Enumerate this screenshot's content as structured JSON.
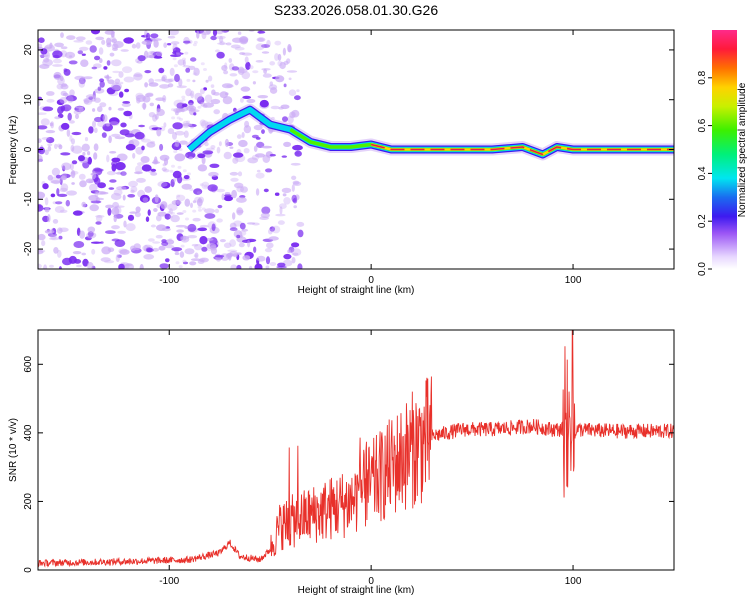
{
  "title": "S233.2026.058.01.30.G26",
  "colors": {
    "snr_line": "#e8302a",
    "spectral_weak": "#c9a8f5",
    "spectral_mid": "#7a2cf0",
    "spectral_strong": "#e0204a"
  },
  "chart_data": [
    {
      "type": "heatmap",
      "xlabel": "Height of straight line (km)",
      "ylabel": "Frequency (Hz)",
      "xlim": [
        -165,
        150
      ],
      "ylim": [
        -24,
        24
      ],
      "xticks": [
        -100,
        0,
        100
      ],
      "yticks": [
        -20,
        -10,
        0,
        10,
        20
      ],
      "grid": false,
      "colorbar": {
        "label": "Normalized spectral amplitude",
        "ticks": [
          0.0,
          0.2,
          0.4,
          0.6,
          0.8
        ],
        "range": [
          0,
          1
        ]
      },
      "ridge": {
        "description_points": [
          {
            "x": -90,
            "f": 0.0
          },
          {
            "x": -80,
            "f": 3.5
          },
          {
            "x": -70,
            "f": 6.0
          },
          {
            "x": -60,
            "f": 8.0
          },
          {
            "x": -50,
            "f": 5.0
          },
          {
            "x": -40,
            "f": 4.0
          },
          {
            "x": -30,
            "f": 1.5
          },
          {
            "x": -20,
            "f": 0.5
          },
          {
            "x": -10,
            "f": 0.5
          },
          {
            "x": 0,
            "f": 1.0
          },
          {
            "x": 10,
            "f": 0.0
          },
          {
            "x": 20,
            "f": 0.0
          },
          {
            "x": 40,
            "f": 0.0
          },
          {
            "x": 60,
            "f": 0.0
          },
          {
            "x": 75,
            "f": 0.5
          },
          {
            "x": 85,
            "f": -1.0
          },
          {
            "x": 92,
            "f": 0.5
          },
          {
            "x": 100,
            "f": 0.0
          },
          {
            "x": 150,
            "f": 0.0
          }
        ]
      }
    },
    {
      "type": "line",
      "xlabel": "Height of straight line (km)",
      "ylabel": "SNR (10 * v/v)",
      "xlim": [
        -165,
        150
      ],
      "ylim": [
        0,
        700
      ],
      "xticks": [
        -100,
        0,
        100
      ],
      "yticks": [
        0,
        200,
        400,
        600
      ],
      "grid": false,
      "envelope": [
        {
          "x": -165,
          "y": 20
        },
        {
          "x": -120,
          "y": 25
        },
        {
          "x": -90,
          "y": 30
        },
        {
          "x": -75,
          "y": 50
        },
        {
          "x": -70,
          "y": 80
        },
        {
          "x": -65,
          "y": 40
        },
        {
          "x": -55,
          "y": 30
        },
        {
          "x": -50,
          "y": 60
        },
        {
          "x": -45,
          "y": 130
        },
        {
          "x": -35,
          "y": 150
        },
        {
          "x": -25,
          "y": 170
        },
        {
          "x": -10,
          "y": 200
        },
        {
          "x": 0,
          "y": 250
        },
        {
          "x": 10,
          "y": 300
        },
        {
          "x": 20,
          "y": 350
        },
        {
          "x": 30,
          "y": 390
        },
        {
          "x": 45,
          "y": 410
        },
        {
          "x": 60,
          "y": 410
        },
        {
          "x": 80,
          "y": 420
        },
        {
          "x": 90,
          "y": 410
        },
        {
          "x": 100,
          "y": 410
        },
        {
          "x": 120,
          "y": 405
        },
        {
          "x": 150,
          "y": 405
        }
      ],
      "annotations": [
        {
          "x": -70,
          "y": 100
        },
        {
          "x": -38,
          "y": 370
        },
        {
          "x": -4,
          "y": 390
        },
        {
          "x": 100,
          "y": 700
        },
        {
          "x": 99,
          "y": 200
        }
      ]
    }
  ]
}
